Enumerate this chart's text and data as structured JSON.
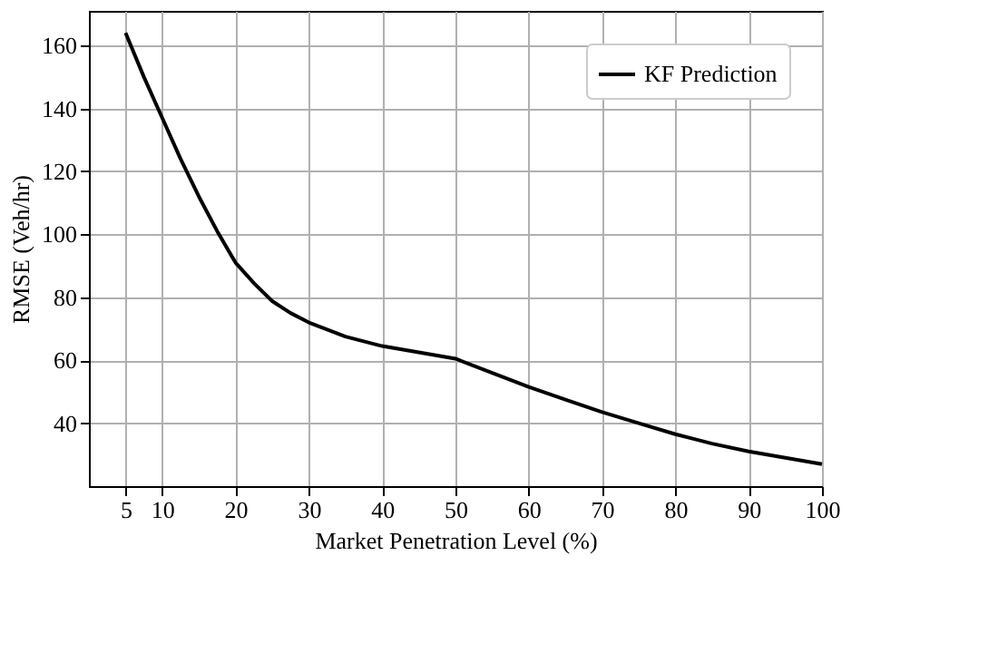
{
  "chart_data": {
    "type": "line",
    "xlabel": "Market Penetration Level (%)",
    "ylabel": "RMSE (Veh/hr)",
    "x": [
      5,
      7.5,
      10,
      12.5,
      15,
      17.5,
      20,
      22.5,
      25,
      27.5,
      30,
      35,
      40,
      45,
      50,
      55,
      60,
      65,
      70,
      75,
      80,
      85,
      90,
      95,
      100
    ],
    "series": [
      {
        "name": "KF Prediction",
        "color": "#000000",
        "values": [
          164,
          150,
          137,
          124,
          112,
          101,
          91,
          84.5,
          78.8,
          75,
          72,
          67.5,
          64.5,
          62.5,
          60.5,
          56,
          51.5,
          47.5,
          43.5,
          40,
          36.5,
          33.5,
          31,
          29,
          27
        ]
      }
    ],
    "xlim": [
      0,
      100
    ],
    "ylim": [
      20,
      171
    ],
    "xticks": [
      5,
      10,
      20,
      30,
      40,
      50,
      60,
      70,
      80,
      90,
      100
    ],
    "yticks": [
      40,
      60,
      80,
      100,
      120,
      140,
      160
    ],
    "grid": true,
    "legend": "top right",
    "line_style": "solid",
    "marker": "none"
  }
}
